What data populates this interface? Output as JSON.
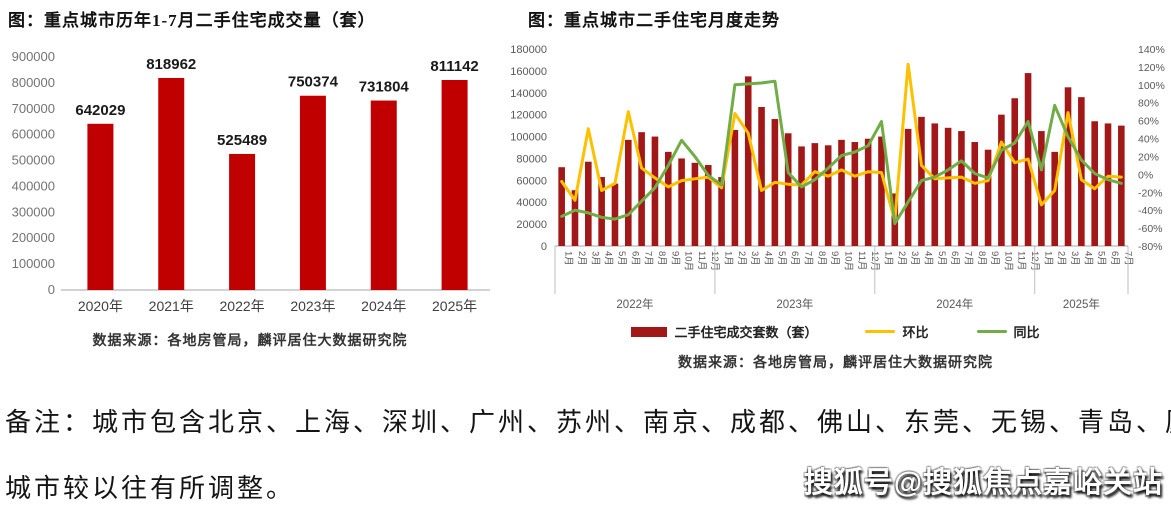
{
  "note": {
    "line1": "备注：城市包含北京、上海、深圳、广州、苏州、南京、成都、佛山、东莞、无锡、青岛、厦门、郑州，",
    "line2": "城市较以往有所调整。"
  },
  "watermark": "搜狐号@搜狐焦点嘉峪关站",
  "colors": {
    "annual_bar": "#C00000",
    "monthly_bar": "#A21818",
    "mom_line": "#FFC000",
    "yoy_line": "#70AD47",
    "axis_line": "#A6A6A6",
    "separator": "#BFBFBF"
  },
  "chart_data": [
    {
      "type": "bar",
      "title": "图：重点城市历年1-7月二手住宅成交量（套）",
      "categories": [
        "2020年",
        "2021年",
        "2022年",
        "2023年",
        "2024年",
        "2025年"
      ],
      "values": [
        642029,
        818962,
        525489,
        750374,
        731804,
        811142
      ],
      "ylim": [
        0,
        900000
      ],
      "ytick_step": 100000,
      "grid": false,
      "data_labels": true,
      "bar_color": "#C00000",
      "source": "数据来源：各地房管局，麟评居住大数据研究院"
    },
    {
      "type": "bar+line",
      "title": "图：重点城市二手住宅月度走势",
      "year_groups": [
        {
          "label": "2022年",
          "months": 12
        },
        {
          "label": "2023年",
          "months": 12
        },
        {
          "label": "2024年",
          "months": 12
        },
        {
          "label": "2025年",
          "months": 7
        }
      ],
      "month_ticks": [
        "1月",
        "2月",
        "3月",
        "4月",
        "5月",
        "6月",
        "7月",
        "8月",
        "9月",
        "10月",
        "11月",
        "12月",
        "1月",
        "2月",
        "3月",
        "4月",
        "5月",
        "6月",
        "7月",
        "8月",
        "9月",
        "10月",
        "11月",
        "12月",
        "1月",
        "2月",
        "3月",
        "4月",
        "5月",
        "6月",
        "7月",
        "8月",
        "9月",
        "10月",
        "11月",
        "12月",
        "1月",
        "2月",
        "3月",
        "4月",
        "5月",
        "6月",
        "7月"
      ],
      "left_axis": {
        "ylim": [
          0,
          180000
        ],
        "ytick_step": 20000
      },
      "right_axis": {
        "ylim": [
          -80,
          140
        ],
        "ytick_step": 20,
        "unit": "%"
      },
      "grid": false,
      "legend_position": "bottom",
      "series": [
        {
          "name": "二手住宅成交套数（套）",
          "type": "bar",
          "axis": "left",
          "color": "#A21818",
          "values": [
            72000,
            51000,
            77000,
            63000,
            57000,
            97000,
            104000,
            100000,
            86000,
            80000,
            76000,
            74000,
            63000,
            106000,
            155000,
            127000,
            116000,
            103000,
            91000,
            94000,
            92000,
            97000,
            95000,
            98000,
            100000,
            48000,
            107000,
            118000,
            112000,
            108000,
            105000,
            95000,
            88000,
            120000,
            135000,
            158000,
            105000,
            86000,
            145000,
            136000,
            114000,
            112000,
            110000
          ]
        },
        {
          "name": "环比",
          "type": "line",
          "axis": "right",
          "color": "#FFC000",
          "values": [
            -8,
            -29,
            51,
            -18,
            -10,
            70,
            7,
            -4,
            -14,
            -7,
            -5,
            -3,
            -15,
            68,
            46,
            -18,
            -9,
            -11,
            -12,
            3,
            -2,
            5,
            -2,
            3,
            2,
            -52,
            123,
            10,
            -5,
            -4,
            -3,
            -10,
            -7,
            36,
            13,
            17,
            -34,
            -18,
            69,
            -6,
            -16,
            -2,
            -3
          ]
        },
        {
          "name": "同比",
          "type": "line",
          "axis": "right",
          "color": "#70AD47",
          "values": [
            -47,
            -40,
            -43,
            -48,
            -50,
            -45,
            -30,
            -15,
            10,
            38,
            20,
            -1,
            -12,
            100,
            101,
            102,
            104,
            2,
            -14,
            -6,
            7,
            21,
            25,
            32,
            59,
            -55,
            -31,
            -7,
            -3,
            5,
            15,
            1,
            -4,
            27,
            35,
            59,
            5,
            77,
            42,
            16,
            1,
            -6,
            -10
          ]
        }
      ],
      "source": "数据来源：各地房管局，麟评居住大数据研究院"
    }
  ]
}
